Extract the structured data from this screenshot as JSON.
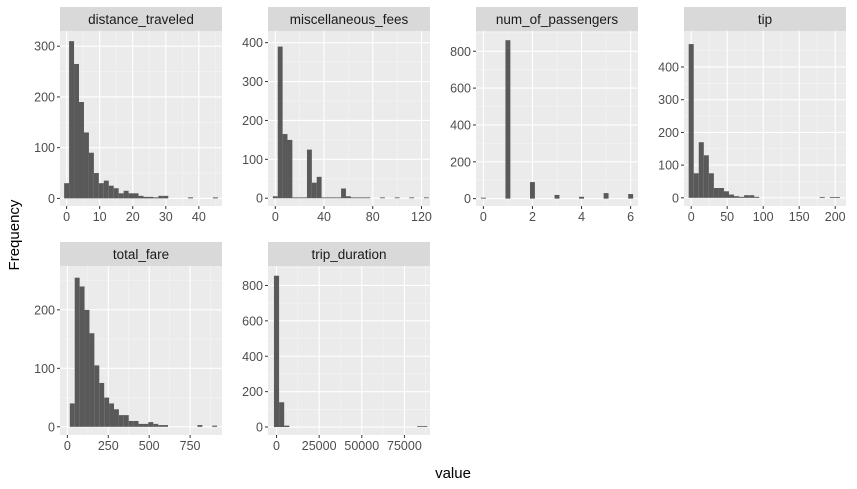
{
  "figure": {
    "xlabel": "value",
    "ylabel": "Frequency"
  },
  "colors": {
    "panel_bg": "#ebebeb",
    "grid_major": "#ffffff",
    "strip_bg": "#d9d9d9",
    "bar_fill": "#595959",
    "tick_text": "#4d4d4d",
    "title_text": "#1a1a1a"
  },
  "chart_data": [
    {
      "type": "bar",
      "title": "distance_traveled",
      "xlim": [
        -2,
        47
      ],
      "ylim": [
        -15,
        330
      ],
      "xticks": [
        0,
        10,
        20,
        30,
        40
      ],
      "xtick_labels": [
        "0",
        "10",
        "20",
        "30",
        "40"
      ],
      "yticks": [
        0,
        100,
        200,
        300
      ],
      "ytick_labels": [
        "0",
        "100",
        "200",
        "300"
      ],
      "bin_width": 1.5,
      "bins_start": [
        -0.75,
        0.75,
        2.25,
        3.75,
        5.25,
        6.75,
        8.25,
        9.75,
        11.25,
        12.75,
        14.25,
        15.75,
        17.25,
        18.75,
        20.25,
        21.75,
        23.25,
        24.75,
        26.25,
        27.75,
        29.25,
        36.75,
        44.25
      ],
      "values": [
        30,
        310,
        265,
        190,
        130,
        90,
        50,
        30,
        35,
        25,
        20,
        10,
        15,
        10,
        10,
        5,
        3,
        3,
        2,
        5,
        5,
        2,
        2
      ]
    },
    {
      "type": "bar",
      "title": "miscellaneous_fees",
      "xlim": [
        -6,
        127
      ],
      "ylim": [
        -20,
        430
      ],
      "xticks": [
        0,
        40,
        80,
        120
      ],
      "xtick_labels": [
        "0",
        "40",
        "80",
        "120"
      ],
      "yticks": [
        0,
        100,
        200,
        300,
        400
      ],
      "ytick_labels": [
        "0",
        "100",
        "200",
        "300",
        "400"
      ],
      "bin_width": 4,
      "bins_start": [
        -2,
        2,
        6,
        10,
        14,
        18,
        22,
        26,
        30,
        34,
        38,
        42,
        46,
        50,
        54,
        58,
        62,
        66,
        70,
        74,
        86,
        98,
        110,
        122
      ],
      "values": [
        5,
        390,
        165,
        150,
        0,
        0,
        0,
        125,
        40,
        55,
        0,
        0,
        0,
        0,
        25,
        5,
        0,
        0,
        2,
        2,
        2,
        2,
        2,
        2
      ]
    },
    {
      "type": "bar",
      "title": "num_of_passengers",
      "xlim": [
        -0.3,
        6.3
      ],
      "ylim": [
        -40,
        910
      ],
      "xticks": [
        0,
        2,
        4,
        6
      ],
      "xtick_labels": [
        "0",
        "2",
        "4",
        "6"
      ],
      "yticks": [
        0,
        200,
        400,
        600,
        800
      ],
      "ytick_labels": [
        "0",
        "200",
        "400",
        "600",
        "800"
      ],
      "bin_width": 0.2,
      "bins_start": [
        -0.1,
        0.9,
        1.9,
        2.9,
        3.9,
        4.9,
        5.9
      ],
      "values": [
        5,
        860,
        90,
        20,
        10,
        30,
        25
      ]
    },
    {
      "type": "bar",
      "title": "tip",
      "xlim": [
        -10,
        215
      ],
      "ylim": [
        -25,
        510
      ],
      "xticks": [
        0,
        50,
        100,
        150,
        200
      ],
      "xtick_labels": [
        "0",
        "50",
        "100",
        "150",
        "200"
      ],
      "yticks": [
        0,
        100,
        200,
        300,
        400
      ],
      "ytick_labels": [
        "0",
        "100",
        "200",
        "300",
        "400"
      ],
      "bin_width": 7,
      "bins_start": [
        -3.5,
        3.5,
        10.5,
        17.5,
        24.5,
        31.5,
        38.5,
        45.5,
        52.5,
        59.5,
        66.5,
        73.5,
        80.5,
        87.5,
        178.5,
        192.5,
        199.5
      ],
      "values": [
        470,
        75,
        170,
        130,
        75,
        30,
        30,
        20,
        10,
        5,
        3,
        8,
        8,
        3,
        2,
        2,
        2
      ]
    },
    {
      "type": "bar",
      "title": "total_fare",
      "xlim": [
        -45,
        945
      ],
      "ylim": [
        -14,
        275
      ],
      "xticks": [
        0,
        250,
        500,
        750
      ],
      "xtick_labels": [
        "0",
        "250",
        "500",
        "750"
      ],
      "yticks": [
        0,
        100,
        200
      ],
      "ytick_labels": [
        "0",
        "100",
        "200"
      ],
      "bin_width": 30,
      "bins_start": [
        15,
        45,
        75,
        105,
        135,
        165,
        195,
        225,
        255,
        285,
        315,
        345,
        375,
        405,
        435,
        465,
        495,
        525,
        555,
        585,
        795,
        885
      ],
      "values": [
        40,
        255,
        240,
        200,
        160,
        105,
        75,
        50,
        40,
        30,
        20,
        20,
        10,
        10,
        5,
        5,
        8,
        5,
        3,
        3,
        3,
        2
      ]
    },
    {
      "type": "bar",
      "title": "trip_duration",
      "xlim": [
        -5000,
        90000
      ],
      "ylim": [
        -45,
        910
      ],
      "xticks": [
        0,
        25000,
        50000,
        75000
      ],
      "xtick_labels": [
        "0",
        "25000",
        "50000",
        "75000"
      ],
      "yticks": [
        0,
        200,
        400,
        600,
        800
      ],
      "ytick_labels": [
        "0",
        "200",
        "400",
        "600",
        "800"
      ],
      "bin_width": 3000,
      "bins_start": [
        -1500,
        1500,
        4500,
        82500,
        85500
      ],
      "values": [
        855,
        140,
        8,
        2,
        2
      ]
    }
  ]
}
